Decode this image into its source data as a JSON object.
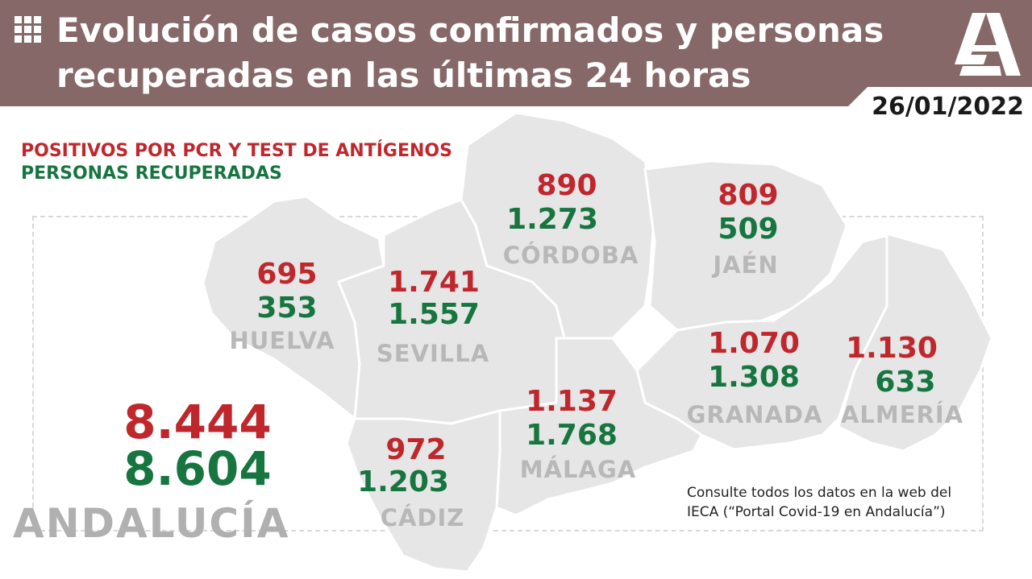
{
  "header": {
    "title_line1": "Evolución de casos confirmados y personas",
    "title_line2": "recuperadas en las últimas 24 horas",
    "date": "26/01/2022",
    "logo": "junta-andalucia-a-logo",
    "menu_icon": "grid-icon"
  },
  "colors": {
    "header_bg": "#876869",
    "positive": "#c0272d",
    "recovered": "#17753f",
    "map_fill": "#e6e6e6",
    "label_gray": "#b8b8b8"
  },
  "legend": {
    "positives": "POSITIVOS POR PCR Y TEST DE ANTÍGENOS",
    "recovered": "PERSONAS RECUPERADAS"
  },
  "provinces": {
    "cordoba": {
      "name": "CÓRDOBA",
      "positives": "890",
      "recovered": "1.273"
    },
    "jaen": {
      "name": "JAÉN",
      "positives": "809",
      "recovered": "509"
    },
    "huelva": {
      "name": "HUELVA",
      "positives": "695",
      "recovered": "353"
    },
    "sevilla": {
      "name": "SEVILLA",
      "positives": "1.741",
      "recovered": "1.557"
    },
    "granada": {
      "name": "GRANADA",
      "positives": "1.070",
      "recovered": "1.308"
    },
    "almeria": {
      "name": "ALMERÍA",
      "positives": "1.130",
      "recovered": "633"
    },
    "malaga": {
      "name": "MÁLAGA",
      "positives": "1.137",
      "recovered": "1.768"
    },
    "cadiz": {
      "name": "CÁDIZ",
      "positives": "972",
      "recovered": "1.203"
    }
  },
  "total": {
    "name": "ANDALUCÍA",
    "positives": "8.444",
    "recovered": "8.604"
  },
  "note": {
    "line1": "Consulte todos los datos en la web del",
    "line2": "IECA (“Portal Covid-19 en Andalucía”)"
  }
}
